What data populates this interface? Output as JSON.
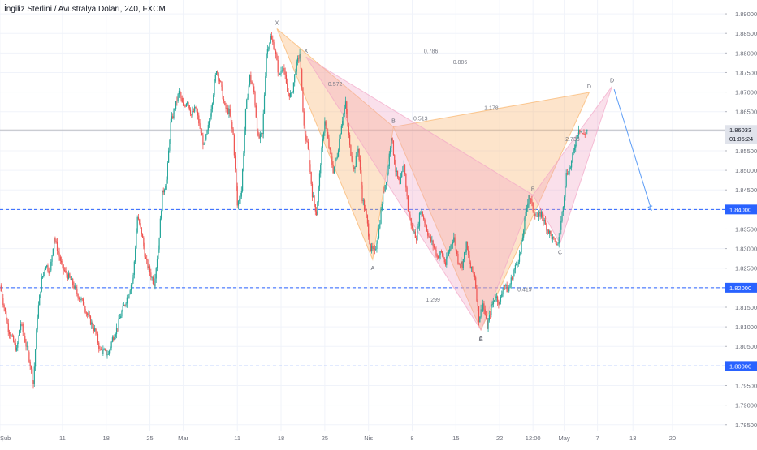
{
  "chart_data": {
    "type": "candlestick",
    "title": "İngiliz Sterlini / Avustralya Doları, 240, FXCM",
    "ylim": [
      1.7835,
      1.8925
    ],
    "xlim": [
      0,
      174
    ],
    "y_ticks": [
      "1.89000",
      "1.88500",
      "1.88000",
      "1.87500",
      "1.87000",
      "1.86500",
      "1.86000",
      "1.85500",
      "1.85000",
      "1.84500",
      "1.84000",
      "1.83500",
      "1.83000",
      "1.82500",
      "1.82000",
      "1.81500",
      "1.81000",
      "1.80500",
      "1.80000",
      "1.79500",
      "1.79000",
      "1.78500"
    ],
    "x_ticks": [
      {
        "x": 0,
        "label": "Şub"
      },
      {
        "x": 15,
        "label": "11"
      },
      {
        "x": 25.5,
        "label": "18"
      },
      {
        "x": 36,
        "label": "25"
      },
      {
        "x": 44,
        "label": "Mar"
      },
      {
        "x": 57,
        "label": "11"
      },
      {
        "x": 67.5,
        "label": "18"
      },
      {
        "x": 78,
        "label": "25"
      },
      {
        "x": 88.5,
        "label": "Nis"
      },
      {
        "x": 99,
        "label": "8"
      },
      {
        "x": 109.5,
        "label": "15"
      },
      {
        "x": 120,
        "label": "22"
      },
      {
        "x": 128,
        "label": "12:00"
      },
      {
        "x": 135.5,
        "label": "May"
      },
      {
        "x": 143.5,
        "label": "7"
      },
      {
        "x": 152,
        "label": "13"
      },
      {
        "x": 161.5,
        "label": "20"
      }
    ],
    "current_price": {
      "value": 1.86033,
      "label": "1.86033",
      "countdown": "01:05:24"
    },
    "horizontal_levels": [
      {
        "value": 1.84,
        "label": "1.84000"
      },
      {
        "value": 1.82,
        "label": "1.82000"
      },
      {
        "value": 1.8,
        "label": "1.80000"
      }
    ],
    "price_path": [
      [
        0,
        1.8205
      ],
      [
        2,
        1.8095
      ],
      [
        4,
        1.804
      ],
      [
        5,
        1.811
      ],
      [
        7,
        1.802
      ],
      [
        8,
        1.7955
      ],
      [
        9,
        1.813
      ],
      [
        10,
        1.822
      ],
      [
        11,
        1.826
      ],
      [
        12,
        1.824
      ],
      [
        13,
        1.833
      ],
      [
        14,
        1.829
      ],
      [
        15,
        1.825
      ],
      [
        17,
        1.822
      ],
      [
        19,
        1.8175
      ],
      [
        20,
        1.816
      ],
      [
        21,
        1.813
      ],
      [
        23,
        1.8085
      ],
      [
        24,
        1.804
      ],
      [
        26,
        1.803
      ],
      [
        27,
        1.807
      ],
      [
        28,
        1.8095
      ],
      [
        29,
        1.813
      ],
      [
        30,
        1.816
      ],
      [
        31,
        1.819
      ],
      [
        32,
        1.823
      ],
      [
        33,
        1.838
      ],
      [
        34,
        1.834
      ],
      [
        35,
        1.827
      ],
      [
        36,
        1.824
      ],
      [
        37,
        1.821
      ],
      [
        38,
        1.83
      ],
      [
        39,
        1.844
      ],
      [
        40,
        1.8475
      ],
      [
        41,
        1.862
      ],
      [
        42,
        1.866
      ],
      [
        43,
        1.87
      ],
      [
        44,
        1.866
      ],
      [
        45,
        1.868
      ],
      [
        46,
        1.864
      ],
      [
        47,
        1.866
      ],
      [
        48,
        1.861
      ],
      [
        49,
        1.856
      ],
      [
        50,
        1.861
      ],
      [
        51,
        1.868
      ],
      [
        52,
        1.876
      ],
      [
        53,
        1.872
      ],
      [
        54,
        1.866
      ],
      [
        55,
        1.865
      ],
      [
        56,
        1.859
      ],
      [
        57,
        1.841
      ],
      [
        58,
        1.845
      ],
      [
        59,
        1.865
      ],
      [
        60,
        1.874
      ],
      [
        61,
        1.87
      ],
      [
        62,
        1.858
      ],
      [
        63,
        1.859
      ],
      [
        64,
        1.88
      ],
      [
        65,
        1.884
      ],
      [
        66,
        1.881
      ],
      [
        67,
        1.874
      ],
      [
        68,
        1.877
      ],
      [
        69,
        1.87
      ],
      [
        70,
        1.869
      ],
      [
        71,
        1.876
      ],
      [
        72,
        1.88
      ],
      [
        73,
        1.861
      ],
      [
        74,
        1.855
      ],
      [
        75,
        1.844
      ],
      [
        76,
        1.839
      ],
      [
        77,
        1.852
      ],
      [
        78,
        1.863
      ],
      [
        79,
        1.856
      ],
      [
        80,
        1.85
      ],
      [
        81,
        1.854
      ],
      [
        82,
        1.862
      ],
      [
        83,
        1.867
      ],
      [
        84,
        1.856
      ],
      [
        85,
        1.85
      ],
      [
        86,
        1.856
      ],
      [
        87,
        1.843
      ],
      [
        88,
        1.838
      ],
      [
        89,
        1.83
      ],
      [
        90,
        1.829
      ],
      [
        91,
        1.835
      ],
      [
        92,
        1.844
      ],
      [
        93,
        1.849
      ],
      [
        94,
        1.859
      ],
      [
        95,
        1.85
      ],
      [
        96,
        1.846
      ],
      [
        97,
        1.852
      ],
      [
        98,
        1.84
      ],
      [
        99,
        1.835
      ],
      [
        100,
        1.833
      ],
      [
        101,
        1.84
      ],
      [
        102,
        1.837
      ],
      [
        103,
        1.833
      ],
      [
        104,
        1.831
      ],
      [
        105,
        1.828
      ],
      [
        106,
        1.829
      ],
      [
        107,
        1.826
      ],
      [
        108,
        1.83
      ],
      [
        109,
        1.833
      ],
      [
        110,
        1.827
      ],
      [
        111,
        1.826
      ],
      [
        112,
        1.831
      ],
      [
        113,
        1.825
      ],
      [
        114,
        1.823
      ],
      [
        115,
        1.812
      ],
      [
        116,
        1.816
      ],
      [
        117,
        1.81
      ],
      [
        118,
        1.815
      ],
      [
        119,
        1.818
      ],
      [
        120,
        1.816
      ],
      [
        121,
        1.821
      ],
      [
        122,
        1.819
      ],
      [
        123,
        1.823
      ],
      [
        124,
        1.826
      ],
      [
        125,
        1.829
      ],
      [
        126,
        1.837
      ],
      [
        127,
        1.844
      ],
      [
        128,
        1.84
      ],
      [
        129,
        1.838
      ],
      [
        130,
        1.839
      ],
      [
        131,
        1.836
      ],
      [
        132,
        1.834
      ],
      [
        133,
        1.832
      ],
      [
        134,
        1.831
      ],
      [
        135,
        1.839
      ],
      [
        136,
        1.849
      ],
      [
        137,
        1.851
      ],
      [
        138,
        1.856
      ],
      [
        139,
        1.861
      ],
      [
        140,
        1.859
      ],
      [
        141,
        1.8603
      ]
    ],
    "patterns": [
      {
        "name": "pattern-orange",
        "color": "#f9b36a",
        "points": {
          "X": [
            66.5,
            1.8862
          ],
          "A": [
            89.5,
            1.8272
          ],
          "B": [
            94.5,
            1.8611
          ],
          "C": [
            115.5,
            1.8092
          ],
          "D": [
            141.5,
            1.8699
          ]
        },
        "labels": {
          "X": "X",
          "A": "A",
          "B": "B",
          "C": "C",
          "D": "D"
        }
      },
      {
        "name": "pattern-pink",
        "color": "#f2a7c7",
        "points": {
          "X": [
            73.5,
            1.879
          ],
          "A": [
            115.5,
            1.8092
          ],
          "B": [
            128,
            1.8437
          ],
          "C": [
            134.5,
            1.8313
          ],
          "D": [
            147,
            1.8715
          ]
        },
        "labels": {
          "X": "X",
          "A": "A",
          "B": "B",
          "C": "C",
          "D": "D"
        }
      }
    ],
    "ratio_labels": [
      {
        "text": "0.572",
        "at": [
          80.5,
          1.8716
        ]
      },
      {
        "text": "0.786",
        "at": [
          103.5,
          1.88
        ]
      },
      {
        "text": "0.886",
        "at": [
          110.5,
          1.8772
        ]
      },
      {
        "text": "0.513",
        "at": [
          101,
          1.8628
        ]
      },
      {
        "text": "1.178",
        "at": [
          118,
          1.8655
        ]
      },
      {
        "text": "2.733",
        "at": [
          137.5,
          1.8575
        ]
      },
      {
        "text": "1.299",
        "at": [
          104,
          1.8165
        ]
      },
      {
        "text": "0.419",
        "at": [
          126,
          1.819
        ]
      }
    ],
    "projection": {
      "from": [
        147.5,
        1.8707
      ],
      "to": [
        156.5,
        1.8397
      ]
    }
  }
}
